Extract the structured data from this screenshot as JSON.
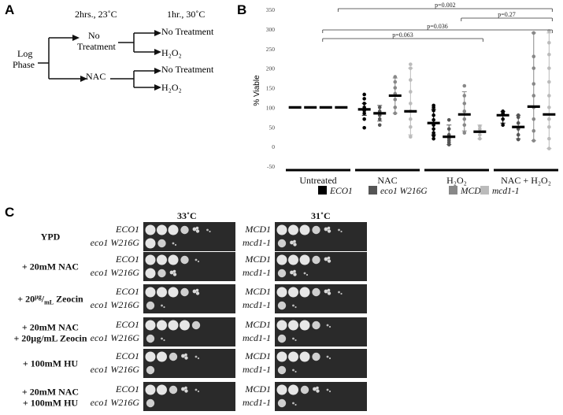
{
  "panel_a": {
    "letter": "A",
    "timing_1": "2hrs., 23˚C",
    "timing_2": "1hr., 30˚C",
    "root": [
      "Log",
      "Phase"
    ],
    "branch_no_treatment": [
      "No",
      "Treatment"
    ],
    "branch_nac": "NAC",
    "leaf_no_treatment_1": "No Treatment",
    "leaf_h2o2_1": "H₂O₂",
    "leaf_no_treatment_2": "No Treatment",
    "leaf_h2o2_2": "H₂O₂"
  },
  "panel_b": {
    "letter": "B",
    "chart_data": {
      "type": "scatter",
      "ylabel": "% Viable",
      "ylim": [
        -50,
        350
      ],
      "yticks": [
        -50,
        0,
        50,
        100,
        150,
        200,
        250,
        300,
        350
      ],
      "groups": [
        "Untreated",
        "NAC",
        "H₂O₂",
        "NAC + H₂O₂"
      ],
      "series": [
        {
          "name": "ECO1",
          "color": "#000000",
          "means": [
            100,
            95,
            60,
            80
          ],
          "errors": [
            null,
            [
              80,
              110
            ],
            [
              30,
              95
            ],
            [
              60,
              90
            ]
          ],
          "points": [
            [],
            [
              48,
              70,
              85,
              92,
              100,
              110,
              122,
              133
            ],
            [
              20,
              28,
              35,
              45,
              55,
              68,
              80,
              92,
              100,
              105
            ],
            [
              55,
              70,
              82,
              85,
              88,
              90
            ]
          ]
        },
        {
          "name": "eco1 W216G",
          "color": "#555555",
          "means": [
            100,
            85,
            25,
            50
          ],
          "errors": [
            null,
            [
              65,
              105
            ],
            [
              5,
              55
            ],
            [
              20,
              80
            ]
          ],
          "points": [
            [],
            [
              55,
              70,
              80,
              90,
              100
            ],
            [
              5,
              10,
              15,
              20,
              30,
              45,
              68
            ],
            [
              18,
              30,
              45,
              60,
              75,
              80
            ]
          ]
        },
        {
          "name": "MCD1",
          "color": "#888888",
          "means": [
            100,
            130,
            82,
            102
          ],
          "errors": [
            null,
            [
              85,
              175
            ],
            [
              40,
              140
            ],
            [
              15,
              290
            ]
          ],
          "points": [
            [],
            [
              85,
              100,
              120,
              135,
              150,
              165,
              178
            ],
            [
              35,
              55,
              70,
              90,
              110,
              130,
              155
            ],
            [
              15,
              40,
              70,
              100,
              130,
              160,
              200,
              230,
              290
            ]
          ]
        },
        {
          "name": "mcd1-1",
          "color": "#bbbbbb",
          "means": [
            100,
            90,
            38,
            82
          ],
          "errors": [
            null,
            [
              30,
              200
            ],
            [
              20,
              55
            ],
            [
              -5,
              290
            ]
          ],
          "points": [
            [],
            [
              25,
              50,
              70,
              90,
              110,
              140,
              170,
              200,
              210
            ],
            [
              20,
              30,
              38,
              45,
              52
            ],
            [
              -5,
              20,
              50,
              70,
              100,
              130,
              165,
              200,
              235,
              265,
              295
            ]
          ]
        }
      ],
      "annotations": [
        "p=0.063",
        "p=0.036",
        "p=0.27",
        "p=0.002"
      ],
      "legend_placement": "bottom"
    }
  },
  "panel_c": {
    "letter": "C",
    "temp_left": "33˚C",
    "temp_right": "31˚C",
    "conditions": [
      {
        "lines": [
          "YPD"
        ],
        "lsub": "",
        "rsub": [
          "",
          ""
        ]
      },
      {
        "lines": [
          "+ 20mM NAC"
        ],
        "lsub": "",
        "rsub": [
          "",
          ""
        ]
      },
      {
        "lines": [
          "+ 20",
          "µg",
          "/",
          "mL",
          " Zeocin"
        ],
        "lsub": "",
        "rsub": [
          "",
          ""
        ]
      },
      {
        "lines": [
          "+ 20mM NAC",
          "+ 20µg/mL Zeocin"
        ],
        "lsub": "",
        "rsub": [
          "",
          ""
        ]
      },
      {
        "lines": [
          "+ 100mM HU"
        ],
        "lsub": "",
        "rsub": [
          "",
          ""
        ]
      },
      {
        "lines": [
          "+ 20mM NAC",
          "+ 100mM HU"
        ],
        "lsub": "",
        "rsub": [
          "",
          ""
        ]
      }
    ],
    "left_strains": [
      "ECO1",
      "eco1 W216G"
    ],
    "right_strains": [
      "MCD1",
      "mcd1-1"
    ],
    "growth": [
      {
        "left": [
          [
            4,
            4,
            4,
            3,
            2,
            1
          ],
          [
            4,
            3,
            1,
            0,
            0,
            0
          ]
        ],
        "right": [
          [
            4,
            4,
            4,
            3,
            2,
            1
          ],
          [
            3,
            2,
            0,
            0,
            0,
            0
          ]
        ]
      },
      {
        "left": [
          [
            4,
            4,
            4,
            3,
            1,
            0
          ],
          [
            4,
            3,
            2,
            0,
            0,
            0
          ]
        ],
        "right": [
          [
            4,
            4,
            4,
            3,
            2,
            0
          ],
          [
            3,
            2,
            1,
            0,
            0,
            0
          ]
        ]
      },
      {
        "left": [
          [
            4,
            4,
            4,
            3,
            2,
            0
          ],
          [
            3,
            1,
            0,
            0,
            0,
            0
          ]
        ],
        "right": [
          [
            4,
            4,
            4,
            3,
            2,
            1
          ],
          [
            3,
            1,
            0,
            0,
            0,
            0
          ]
        ]
      },
      {
        "left": [
          [
            4,
            4,
            4,
            4,
            3,
            0
          ],
          [
            3,
            1,
            0,
            0,
            0,
            0
          ]
        ],
        "right": [
          [
            4,
            4,
            4,
            3,
            1,
            0
          ],
          [
            3,
            1,
            0,
            0,
            0,
            0
          ]
        ]
      },
      {
        "left": [
          [
            4,
            4,
            3,
            2,
            1,
            0
          ],
          [
            3,
            0,
            0,
            0,
            0,
            0
          ]
        ],
        "right": [
          [
            4,
            4,
            4,
            3,
            1,
            0
          ],
          [
            3,
            1,
            0,
            0,
            0,
            0
          ]
        ]
      },
      {
        "left": [
          [
            4,
            4,
            3,
            2,
            1,
            0
          ],
          [
            3,
            0,
            0,
            0,
            0,
            0
          ]
        ],
        "right": [
          [
            4,
            4,
            3,
            2,
            1,
            0
          ],
          [
            3,
            1,
            0,
            0,
            0,
            0
          ]
        ]
      }
    ]
  }
}
